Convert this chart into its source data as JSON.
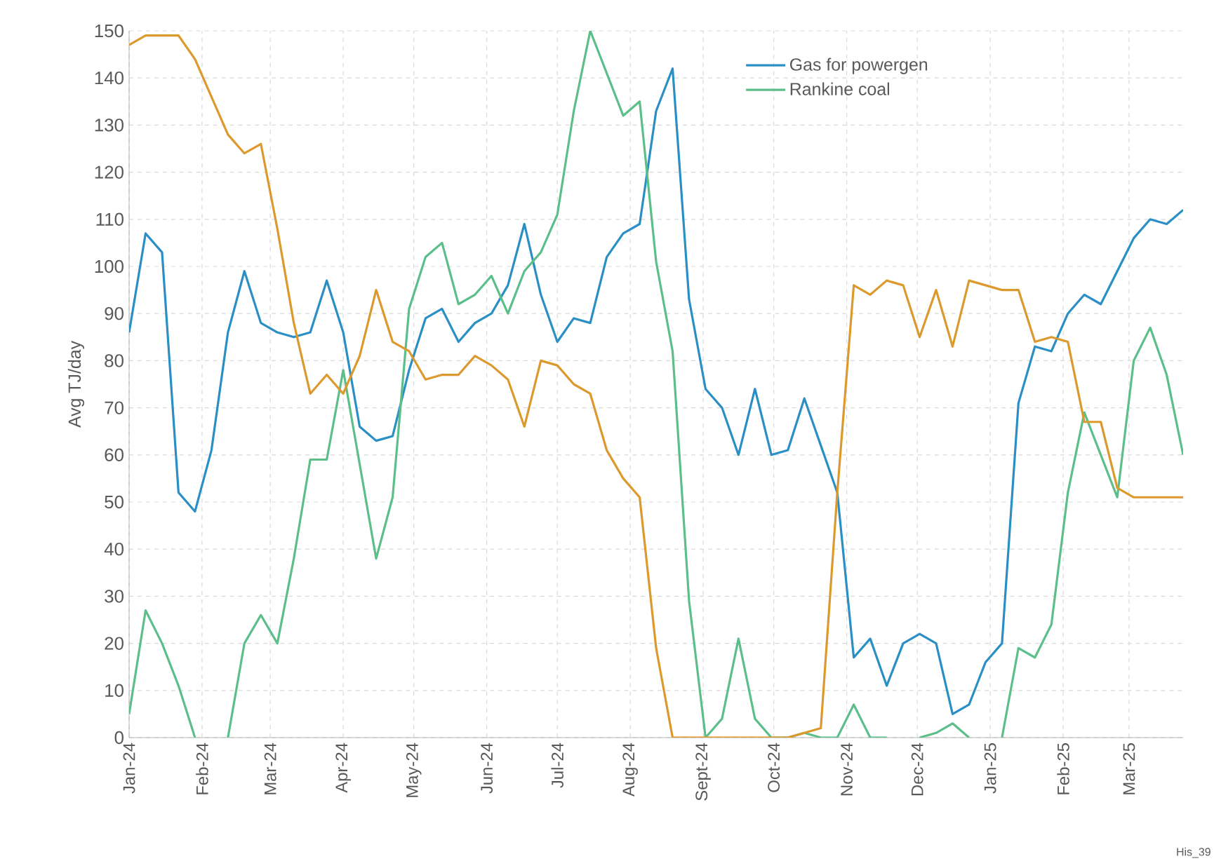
{
  "chart_data": {
    "type": "line",
    "ylabel": "Avg TJ/day",
    "x": [
      "2024-01-01",
      "2024-01-08",
      "2024-01-15",
      "2024-01-22",
      "2024-01-29",
      "2024-02-05",
      "2024-02-12",
      "2024-02-19",
      "2024-02-26",
      "2024-03-04",
      "2024-03-11",
      "2024-03-18",
      "2024-03-25",
      "2024-04-01",
      "2024-04-08",
      "2024-04-15",
      "2024-04-22",
      "2024-04-29",
      "2024-05-06",
      "2024-05-13",
      "2024-05-20",
      "2024-05-27",
      "2024-06-03",
      "2024-06-10",
      "2024-06-17",
      "2024-06-24",
      "2024-07-01",
      "2024-07-08",
      "2024-07-15",
      "2024-07-22",
      "2024-07-29",
      "2024-08-05",
      "2024-08-12",
      "2024-08-19",
      "2024-08-26",
      "2024-09-02",
      "2024-09-09",
      "2024-09-16",
      "2024-09-23",
      "2024-09-30",
      "2024-10-07",
      "2024-10-14",
      "2024-10-21",
      "2024-10-28",
      "2024-11-04",
      "2024-11-11",
      "2024-11-18",
      "2024-11-25",
      "2024-12-02",
      "2024-12-09",
      "2024-12-16",
      "2024-12-23",
      "2024-12-30",
      "2025-01-06",
      "2025-01-13",
      "2025-01-20",
      "2025-01-27",
      "2025-02-03",
      "2025-02-10",
      "2025-02-17",
      "2025-02-24",
      "2025-03-03",
      "2025-03-10",
      "2025-03-17",
      "2025-03-24"
    ],
    "series": [
      {
        "name": "Gas for powergen",
        "color": "#2a8fc4",
        "values": [
          86,
          107,
          103,
          52,
          48,
          61,
          86,
          99,
          88,
          86,
          85,
          86,
          97,
          86,
          66,
          63,
          64,
          78,
          89,
          91,
          84,
          88,
          90,
          96,
          109,
          94,
          84,
          89,
          88,
          102,
          107,
          109,
          133,
          142,
          93,
          74,
          70,
          60,
          74,
          60,
          61,
          72,
          62,
          52,
          17,
          21,
          11,
          20,
          22,
          20,
          5,
          7,
          16,
          20,
          71,
          83,
          82,
          90,
          94,
          92,
          99,
          106,
          110,
          109,
          112
        ]
      },
      {
        "name": "Rankine coal",
        "color": "#5cbf8a",
        "values": [
          5,
          27,
          20,
          11,
          0,
          null,
          0,
          20,
          26,
          20,
          38,
          59,
          59,
          78,
          58,
          38,
          51,
          91,
          102,
          105,
          92,
          94,
          98,
          90,
          99,
          103,
          111,
          133,
          150,
          141,
          132,
          135,
          101,
          82,
          29,
          0,
          4,
          21,
          4,
          0,
          0,
          1,
          0,
          0,
          7,
          0,
          0,
          null,
          0,
          1,
          3,
          0,
          null,
          0,
          19,
          17,
          24,
          52,
          69,
          60,
          51,
          80,
          87,
          77,
          60
        ]
      },
      {
        "color": "#dc9a2e",
        "values": [
          147,
          149,
          149,
          149,
          144,
          136,
          128,
          124,
          126,
          108,
          88,
          73,
          77,
          73,
          81,
          95,
          84,
          82,
          76,
          77,
          77,
          81,
          79,
          76,
          66,
          80,
          79,
          75,
          73,
          61,
          55,
          51,
          19,
          0,
          0,
          0,
          0,
          0,
          0,
          0,
          0,
          1,
          2,
          52,
          96,
          94,
          97,
          96,
          85,
          95,
          83,
          97,
          96,
          95,
          95,
          84,
          85,
          84,
          67,
          67,
          53,
          51,
          51,
          51,
          51
        ]
      }
    ],
    "xlim": [
      "2024-01-01",
      "2025-03-24"
    ],
    "xticks": [
      {
        "value": "2024-01-01",
        "label": "Jan-24"
      },
      {
        "value": "2024-02-01",
        "label": "Feb-24"
      },
      {
        "value": "2024-03-01",
        "label": "Mar-24"
      },
      {
        "value": "2024-04-01",
        "label": "Apr-24"
      },
      {
        "value": "2024-05-01",
        "label": "May-24"
      },
      {
        "value": "2024-06-01",
        "label": "Jun-24"
      },
      {
        "value": "2024-07-01",
        "label": "Jul-24"
      },
      {
        "value": "2024-08-01",
        "label": "Aug-24"
      },
      {
        "value": "2024-09-01",
        "label": "Sept-24"
      },
      {
        "value": "2024-10-01",
        "label": "Oct-24"
      },
      {
        "value": "2024-11-01",
        "label": "Nov-24"
      },
      {
        "value": "2024-12-01",
        "label": "Dec-24"
      },
      {
        "value": "2025-01-01",
        "label": "Jan-25"
      },
      {
        "value": "2025-02-01",
        "label": "Feb-25"
      },
      {
        "value": "2025-03-01",
        "label": "Mar-25"
      }
    ],
    "ylim": [
      0,
      150
    ],
    "yticks": [
      0,
      10,
      20,
      30,
      40,
      50,
      60,
      70,
      80,
      90,
      100,
      110,
      120,
      130,
      140,
      150
    ],
    "grid": true,
    "legend": "top right",
    "annotations": [
      "His_39"
    ]
  }
}
